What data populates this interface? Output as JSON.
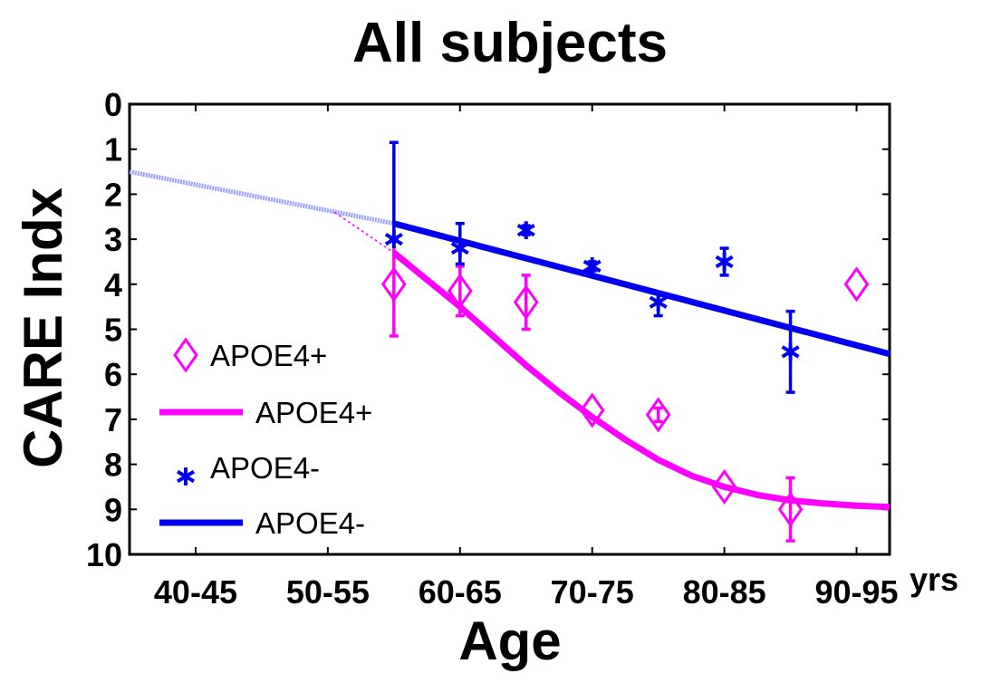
{
  "chart_data": {
    "type": "line",
    "title": "All subjects",
    "xlabel": "Age",
    "ylabel": "CARE Indx",
    "x_unit": "yrs",
    "categories": [
      "40-45",
      "50-55",
      "60-65",
      "70-75",
      "80-85",
      "90-95"
    ],
    "ylim": [
      0,
      10
    ],
    "y_inverted": true,
    "yticks": [
      "0",
      "1",
      "2",
      "3",
      "4",
      "5",
      "6",
      "7",
      "8",
      "9",
      "10"
    ],
    "series": [
      {
        "name": "APOE4+",
        "marker": "diamond",
        "color": "#ff00ff",
        "points": [
          {
            "age": 57.5,
            "value": 4.0,
            "err_low": 5.15,
            "err_high": 3.0
          },
          {
            "age": 62.5,
            "value": 4.15,
            "err_low": 4.7,
            "err_high": 3.6
          },
          {
            "age": 67.5,
            "value": 4.4,
            "err_low": 5.0,
            "err_high": 3.8
          },
          {
            "age": 72.5,
            "value": 6.8,
            "err_low": 6.8,
            "err_high": 6.8
          },
          {
            "age": 77.5,
            "value": 6.9,
            "err_low": 7.05,
            "err_high": 6.75
          },
          {
            "age": 82.5,
            "value": 8.5,
            "err_low": 8.5,
            "err_high": 8.5
          },
          {
            "age": 87.5,
            "value": 9.0,
            "err_low": 9.7,
            "err_high": 8.3
          },
          {
            "age": 92.5,
            "value": 4.0,
            "err_low": 4.0,
            "err_high": 4.0
          }
        ]
      },
      {
        "name": "APOE4+",
        "kind": "fit",
        "color": "#ff00ff",
        "points": [
          [
            57.5,
            3.3
          ],
          [
            60,
            3.9
          ],
          [
            62.5,
            4.5
          ],
          [
            65,
            5.15
          ],
          [
            67.5,
            5.8
          ],
          [
            70,
            6.4
          ],
          [
            72.5,
            6.95
          ],
          [
            75,
            7.45
          ],
          [
            77.5,
            7.9
          ],
          [
            80,
            8.25
          ],
          [
            82.5,
            8.5
          ],
          [
            85,
            8.68
          ],
          [
            87.5,
            8.8
          ],
          [
            90,
            8.87
          ],
          [
            92.5,
            8.92
          ],
          [
            95,
            8.95
          ]
        ]
      },
      {
        "name": "APOE4-",
        "marker": "star",
        "color": "#0000ee",
        "points": [
          {
            "age": 57.5,
            "value": 3.0,
            "err_low": 3.0,
            "err_high": 0.85
          },
          {
            "age": 62.5,
            "value": 3.2,
            "err_low": 3.55,
            "err_high": 2.65
          },
          {
            "age": 67.5,
            "value": 2.8,
            "err_low": 2.9,
            "err_high": 2.7
          },
          {
            "age": 72.5,
            "value": 3.6,
            "err_low": 3.7,
            "err_high": 3.5
          },
          {
            "age": 77.5,
            "value": 4.4,
            "err_low": 4.7,
            "err_high": 4.2
          },
          {
            "age": 82.5,
            "value": 3.5,
            "err_low": 3.8,
            "err_high": 3.2
          },
          {
            "age": 87.5,
            "value": 5.5,
            "err_low": 6.4,
            "err_high": 4.6
          }
        ]
      },
      {
        "name": "APOE4-",
        "kind": "fit",
        "color": "#0000ee",
        "points": [
          [
            57.5,
            2.65
          ],
          [
            95,
            5.55
          ]
        ]
      },
      {
        "name": "extrapolation",
        "kind": "dashed",
        "color": "#9aa0ff",
        "points": [
          [
            37.5,
            1.5
          ],
          [
            57.5,
            2.65
          ]
        ]
      },
      {
        "name": "extrapolation-pos",
        "kind": "dotted",
        "color": "#ff00ff",
        "points": [
          [
            53,
            2.4
          ],
          [
            57.5,
            3.3
          ]
        ]
      }
    ],
    "legend": [
      {
        "label": "APOE4+",
        "symbol": "diamond",
        "color": "#ff00ff"
      },
      {
        "label": "APOE4+",
        "symbol": "line",
        "color": "#ff00ff"
      },
      {
        "label": "APOE4-",
        "symbol": "star",
        "color": "#0000ee"
      },
      {
        "label": "APOE4-",
        "symbol": "line",
        "color": "#0000ee"
      }
    ],
    "legend_position": "bottom-left"
  }
}
